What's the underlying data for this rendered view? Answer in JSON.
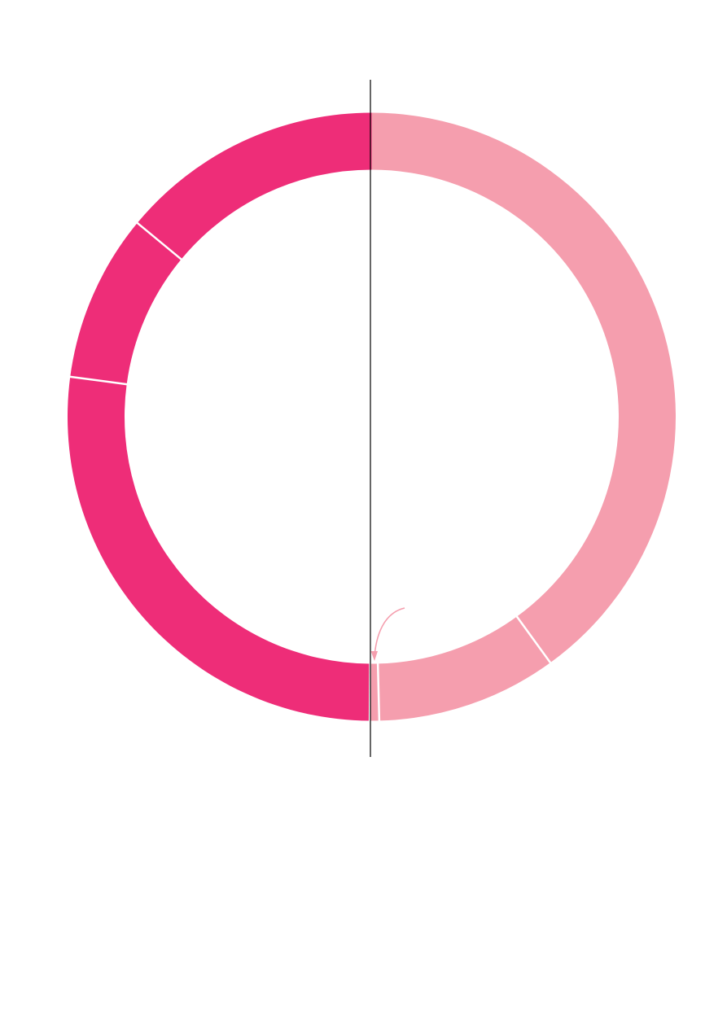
{
  "chart_data": {
    "type": "donut",
    "title": "",
    "start": "top",
    "direction": "clockwise",
    "center_line": true,
    "gap_color": "#ffffff",
    "series": [
      {
        "name": "segment-1",
        "value": 40.0,
        "color": "#f59eae"
      },
      {
        "name": "segment-2",
        "value": 9.6,
        "color": "#f59eae"
      },
      {
        "name": "segment-3",
        "value": 0.5,
        "color": "#f59eae"
      },
      {
        "name": "segment-4",
        "value": 27.0,
        "color": "#ee2d78"
      },
      {
        "name": "segment-5",
        "value": 8.9,
        "color": "#ee2d78"
      },
      {
        "name": "segment-6",
        "value": 14.0,
        "color": "#ee2d78"
      }
    ],
    "callout": {
      "target": "segment-3",
      "color": "#f59eae"
    }
  }
}
